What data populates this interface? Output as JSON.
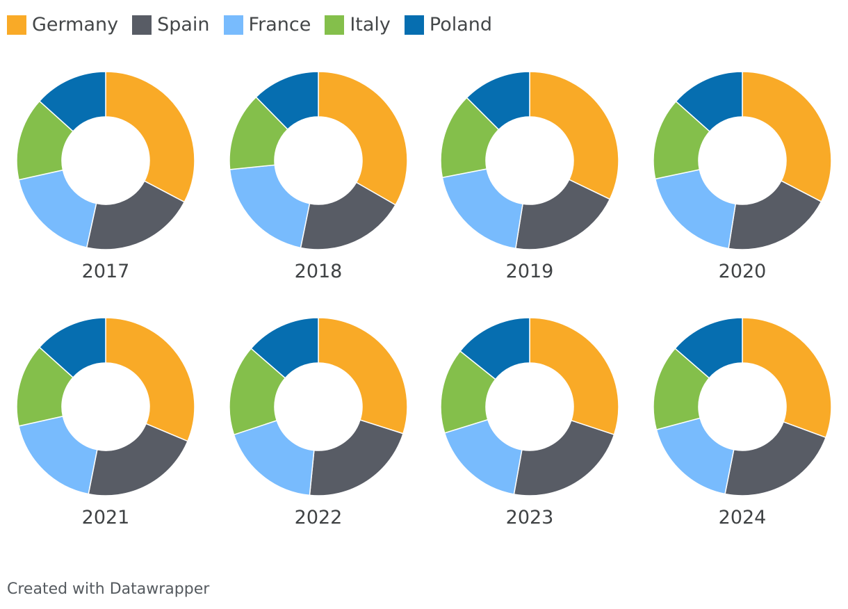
{
  "chart_data": {
    "type": "donut",
    "series_names": [
      "Germany",
      "Spain",
      "France",
      "Italy",
      "Poland"
    ],
    "colors": [
      "#f9aa27",
      "#585c65",
      "#78bbfd",
      "#84bf4b",
      "#066eb0"
    ],
    "donuts": [
      {
        "year": "2017",
        "values": [
          31.6,
          20.0,
          17.5,
          14.6,
          12.9
        ]
      },
      {
        "year": "2018",
        "values": [
          31.8,
          19.0,
          19.3,
          13.6,
          11.8
        ]
      },
      {
        "year": "2019",
        "values": [
          30.6,
          19.4,
          18.5,
          14.8,
          11.9
        ]
      },
      {
        "year": "2020",
        "values": [
          30.9,
          18.8,
          18.2,
          14.1,
          12.7
        ]
      },
      {
        "year": "2021",
        "values": [
          29.8,
          20.7,
          17.5,
          14.4,
          12.7
        ]
      },
      {
        "year": "2022",
        "values": [
          28.7,
          20.8,
          17.6,
          15.8,
          13.1
        ]
      },
      {
        "year": "2023",
        "values": [
          28.7,
          21.7,
          16.6,
          14.8,
          13.6
        ]
      },
      {
        "year": "2024",
        "values": [
          29.4,
          21.6,
          17.0,
          14.9,
          13.1
        ]
      }
    ]
  },
  "legend": [
    {
      "label": "Germany",
      "color": "#f9aa27"
    },
    {
      "label": "Spain",
      "color": "#585c65"
    },
    {
      "label": "France",
      "color": "#78bbfd"
    },
    {
      "label": "Italy",
      "color": "#84bf4b"
    },
    {
      "label": "Poland",
      "color": "#066eb0"
    }
  ],
  "footer": {
    "credit": "Created with Datawrapper"
  }
}
